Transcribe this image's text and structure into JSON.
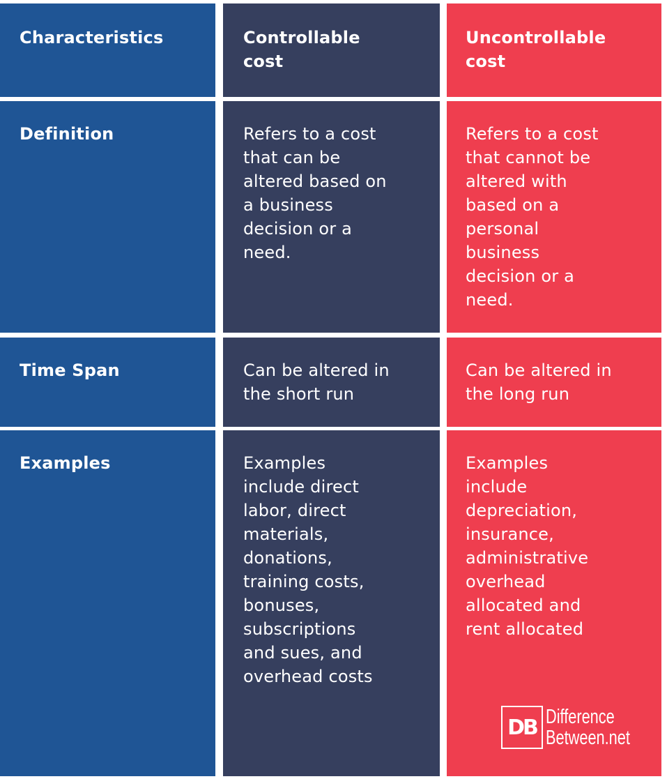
{
  "colors": {
    "characteristics": "#1f5595",
    "controllable": "#363f5e",
    "uncontrollable": "#ef3e4f"
  },
  "header": {
    "characteristics": "Characteristics",
    "controllable": "Controllable\ncost",
    "uncontrollable": "Uncontrollable\ncost"
  },
  "rows": [
    {
      "label": "Definition",
      "controllable": "Refers to a cost\nthat can be\naltered based on\na business\ndecision or a\nneed.",
      "uncontrollable": "Refers to a cost\nthat cannot be\naltered with\nbased on a\npersonal\nbusiness\ndecision or a\nneed."
    },
    {
      "label": "Time Span",
      "controllable": "Can be altered in\nthe short run",
      "uncontrollable": "Can be altered in\nthe long run"
    },
    {
      "label": "Examples",
      "controllable": "Examples\ninclude direct\nlabor, direct\nmaterials,\ndonations,\ntraining costs,\nbonuses,\nsubscriptions\nand sues, and\noverhead costs",
      "uncontrollable": "Examples\ninclude\ndepreciation,\ninsurance,\nadministrative\noverhead\nallocated and\nrent allocated"
    }
  ],
  "logo": {
    "mark": "DB",
    "line1": "Difference",
    "line2": "Between.net"
  }
}
